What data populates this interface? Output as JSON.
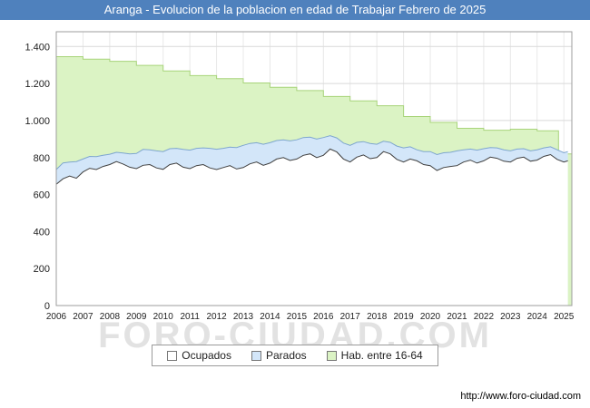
{
  "header": {
    "title": "Aranga - Evolucion de la poblacion en edad de Trabajar Febrero de 2025"
  },
  "watermark": "FORO-CIUDAD.COM",
  "footer": {
    "url": "http://www.foro-ciudad.com"
  },
  "legend": [
    {
      "label": "Ocupados",
      "color": "#ffffff",
      "border": "#777777"
    },
    {
      "label": "Parados",
      "color": "#d3e6f9",
      "border": "#777777"
    },
    {
      "label": "Hab. entre 16-64",
      "color": "#dbf3c4",
      "border": "#777777"
    }
  ],
  "chart_data": {
    "type": "area",
    "title": "Aranga - Evolucion de la poblacion en edad de Trabajar Febrero de 2025",
    "xlabel": "",
    "ylabel": "",
    "x_range": [
      2006,
      2025.3
    ],
    "y_range": [
      0,
      1480
    ],
    "grid": true,
    "legend_position": "bottom",
    "x_ticks": [
      2006,
      2007,
      2008,
      2009,
      2010,
      2011,
      2012,
      2013,
      2014,
      2015,
      2016,
      2017,
      2018,
      2019,
      2020,
      2021,
      2022,
      2023,
      2024,
      2025
    ],
    "y_ticks": [
      {
        "v": 0,
        "label": "0"
      },
      {
        "v": 200,
        "label": "200"
      },
      {
        "v": 400,
        "label": "400"
      },
      {
        "v": 600,
        "label": "600"
      },
      {
        "v": 800,
        "label": "800"
      },
      {
        "v": 1000,
        "label": "1.000"
      },
      {
        "v": 1200,
        "label": "1.200"
      },
      {
        "v": 1400,
        "label": "1.400"
      }
    ],
    "series": [
      {
        "name": "Hab. entre 16-64",
        "mode": "step",
        "fill": "#dbf3c4",
        "stroke": "#a8d47a",
        "points": [
          [
            2006,
            1345
          ],
          [
            2007,
            1332
          ],
          [
            2008,
            1320
          ],
          [
            2009,
            1298
          ],
          [
            2010,
            1268
          ],
          [
            2011,
            1243
          ],
          [
            2012,
            1226
          ],
          [
            2013,
            1203
          ],
          [
            2014,
            1180
          ],
          [
            2015,
            1162
          ],
          [
            2016,
            1130
          ],
          [
            2017,
            1106
          ],
          [
            2018,
            1080
          ],
          [
            2019,
            1022
          ],
          [
            2020,
            990
          ],
          [
            2021,
            958
          ],
          [
            2022,
            948
          ],
          [
            2023,
            953
          ],
          [
            2024,
            945
          ],
          [
            2024.8,
            820
          ]
        ]
      },
      {
        "name": "Parados",
        "mode": "stacked-line",
        "stacked_on": "Ocupados",
        "fill": "#d3e6f9",
        "stroke": "#7ea6cf",
        "points": [
          [
            2006,
            80
          ],
          [
            2006.25,
            86
          ],
          [
            2006.5,
            76
          ],
          [
            2006.75,
            90
          ],
          [
            2007,
            70
          ],
          [
            2007.25,
            64
          ],
          [
            2007.5,
            70
          ],
          [
            2007.75,
            60
          ],
          [
            2008,
            56
          ],
          [
            2008.25,
            50
          ],
          [
            2008.5,
            60
          ],
          [
            2008.75,
            72
          ],
          [
            2009,
            82
          ],
          [
            2009.25,
            86
          ],
          [
            2009.5,
            80
          ],
          [
            2009.75,
            92
          ],
          [
            2010,
            96
          ],
          [
            2010.25,
            86
          ],
          [
            2010.5,
            80
          ],
          [
            2010.75,
            96
          ],
          [
            2011,
            100
          ],
          [
            2011.25,
            94
          ],
          [
            2011.5,
            90
          ],
          [
            2011.75,
            106
          ],
          [
            2012,
            110
          ],
          [
            2012.25,
            104
          ],
          [
            2012.5,
            100
          ],
          [
            2012.75,
            116
          ],
          [
            2013,
            120
          ],
          [
            2013.25,
            110
          ],
          [
            2013.5,
            104
          ],
          [
            2013.75,
            114
          ],
          [
            2014,
            110
          ],
          [
            2014.25,
            100
          ],
          [
            2014.5,
            96
          ],
          [
            2014.75,
            106
          ],
          [
            2015,
            104
          ],
          [
            2015.25,
            96
          ],
          [
            2015.5,
            90
          ],
          [
            2015.75,
            100
          ],
          [
            2016,
            96
          ],
          [
            2016.25,
            72
          ],
          [
            2016.5,
            76
          ],
          [
            2016.75,
            86
          ],
          [
            2017,
            90
          ],
          [
            2017.25,
            80
          ],
          [
            2017.5,
            72
          ],
          [
            2017.75,
            82
          ],
          [
            2018,
            72
          ],
          [
            2018.25,
            56
          ],
          [
            2018.5,
            62
          ],
          [
            2018.75,
            72
          ],
          [
            2019,
            76
          ],
          [
            2019.25,
            66
          ],
          [
            2019.5,
            60
          ],
          [
            2019.75,
            70
          ],
          [
            2020,
            76
          ],
          [
            2020.25,
            86
          ],
          [
            2020.5,
            80
          ],
          [
            2020.75,
            76
          ],
          [
            2021,
            80
          ],
          [
            2021.25,
            66
          ],
          [
            2021.5,
            60
          ],
          [
            2021.75,
            70
          ],
          [
            2022,
            66
          ],
          [
            2022.25,
            52
          ],
          [
            2022.5,
            56
          ],
          [
            2022.75,
            62
          ],
          [
            2023,
            60
          ],
          [
            2023.25,
            50
          ],
          [
            2023.5,
            46
          ],
          [
            2023.75,
            56
          ],
          [
            2024,
            56
          ],
          [
            2024.25,
            46
          ],
          [
            2024.5,
            42
          ],
          [
            2024.75,
            52
          ],
          [
            2025,
            50
          ],
          [
            2025.15,
            50
          ]
        ]
      },
      {
        "name": "Ocupados",
        "mode": "line",
        "fill": "#ffffff",
        "stroke": "#404040",
        "points": [
          [
            2006,
            655
          ],
          [
            2006.25,
            685
          ],
          [
            2006.5,
            700
          ],
          [
            2006.75,
            688
          ],
          [
            2007,
            722
          ],
          [
            2007.25,
            742
          ],
          [
            2007.5,
            735
          ],
          [
            2007.75,
            752
          ],
          [
            2008,
            762
          ],
          [
            2008.25,
            778
          ],
          [
            2008.5,
            765
          ],
          [
            2008.75,
            748
          ],
          [
            2009,
            740
          ],
          [
            2009.25,
            758
          ],
          [
            2009.5,
            762
          ],
          [
            2009.75,
            744
          ],
          [
            2010,
            736
          ],
          [
            2010.25,
            762
          ],
          [
            2010.5,
            770
          ],
          [
            2010.75,
            748
          ],
          [
            2011,
            740
          ],
          [
            2011.25,
            756
          ],
          [
            2011.5,
            762
          ],
          [
            2011.75,
            744
          ],
          [
            2012,
            735
          ],
          [
            2012.25,
            746
          ],
          [
            2012.5,
            756
          ],
          [
            2012.75,
            738
          ],
          [
            2013,
            746
          ],
          [
            2013.25,
            766
          ],
          [
            2013.5,
            776
          ],
          [
            2013.75,
            758
          ],
          [
            2014,
            770
          ],
          [
            2014.25,
            792
          ],
          [
            2014.5,
            800
          ],
          [
            2014.75,
            784
          ],
          [
            2015,
            792
          ],
          [
            2015.25,
            812
          ],
          [
            2015.5,
            820
          ],
          [
            2015.75,
            800
          ],
          [
            2016,
            812
          ],
          [
            2016.25,
            846
          ],
          [
            2016.5,
            830
          ],
          [
            2016.75,
            792
          ],
          [
            2017,
            776
          ],
          [
            2017.25,
            802
          ],
          [
            2017.5,
            814
          ],
          [
            2017.75,
            794
          ],
          [
            2018,
            800
          ],
          [
            2018.25,
            832
          ],
          [
            2018.5,
            820
          ],
          [
            2018.75,
            790
          ],
          [
            2019,
            776
          ],
          [
            2019.25,
            792
          ],
          [
            2019.5,
            782
          ],
          [
            2019.75,
            762
          ],
          [
            2020,
            756
          ],
          [
            2020.25,
            730
          ],
          [
            2020.5,
            746
          ],
          [
            2020.75,
            752
          ],
          [
            2021,
            756
          ],
          [
            2021.25,
            776
          ],
          [
            2021.5,
            786
          ],
          [
            2021.75,
            770
          ],
          [
            2022,
            782
          ],
          [
            2022.25,
            802
          ],
          [
            2022.5,
            796
          ],
          [
            2022.75,
            780
          ],
          [
            2023,
            776
          ],
          [
            2023.25,
            796
          ],
          [
            2023.5,
            802
          ],
          [
            2023.75,
            780
          ],
          [
            2024,
            786
          ],
          [
            2024.25,
            806
          ],
          [
            2024.5,
            816
          ],
          [
            2024.75,
            790
          ],
          [
            2025,
            776
          ],
          [
            2025.15,
            782
          ]
        ]
      }
    ]
  }
}
